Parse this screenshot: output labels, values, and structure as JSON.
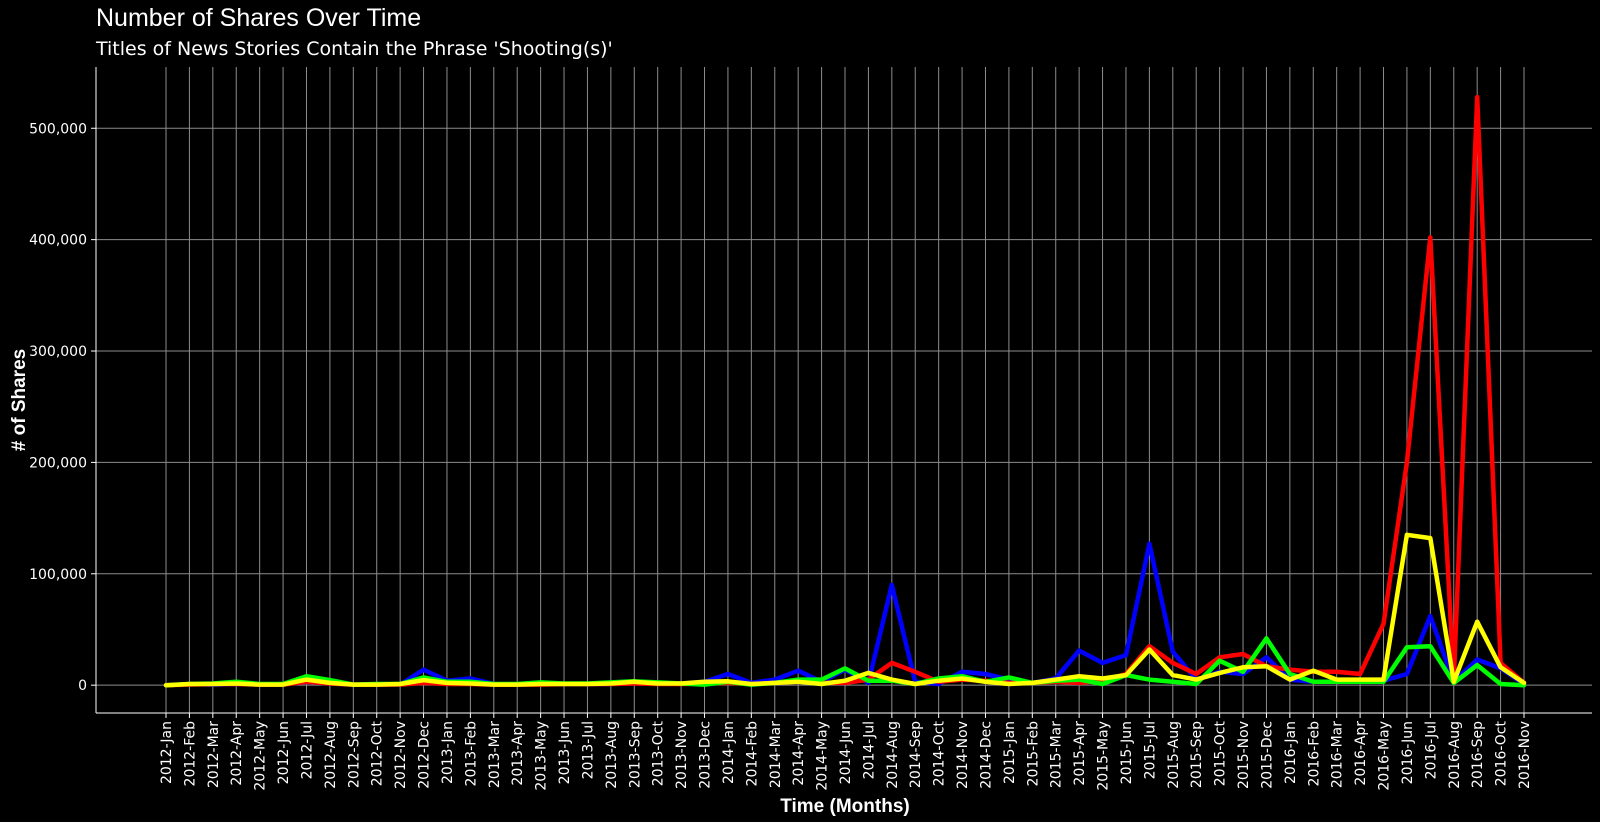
{
  "title": "Number of Shares Over Time",
  "subtitle": "Titles of News Stories Contain the Phrase 'Shooting(s)'",
  "colors": {
    "background": "#000000",
    "grid": "#8c8c8c",
    "text": "#ffffff"
  },
  "chart_data": {
    "type": "line",
    "xlabel": "Time (Months)",
    "ylabel": "# of Shares",
    "ylim": [
      -25000,
      555000
    ],
    "yticks": [
      0,
      100000,
      200000,
      300000,
      400000,
      500000
    ],
    "ytick_labels": [
      "0",
      "100,000",
      "200,000",
      "300,000",
      "400,000",
      "500,000"
    ],
    "grid": true,
    "legend": "none",
    "categories": [
      "2012-Jan",
      "2012-Feb",
      "2012-Mar",
      "2012-Apr",
      "2012-May",
      "2012-Jun",
      "2012-Jul",
      "2012-Aug",
      "2012-Sep",
      "2012-Oct",
      "2012-Nov",
      "2012-Dec",
      "2013-Jan",
      "2013-Feb",
      "2013-Mar",
      "2013-Apr",
      "2013-May",
      "2013-Jun",
      "2013-Jul",
      "2013-Aug",
      "2013-Sep",
      "2013-Oct",
      "2013-Nov",
      "2013-Dec",
      "2014-Jan",
      "2014-Feb",
      "2014-Mar",
      "2014-Apr",
      "2014-May",
      "2014-Jun",
      "2014-Jul",
      "2014-Aug",
      "2014-Sep",
      "2014-Oct",
      "2014-Nov",
      "2014-Dec",
      "2015-Jan",
      "2015-Feb",
      "2015-Mar",
      "2015-Apr",
      "2015-May",
      "2015-Jun",
      "2015-Jul",
      "2015-Aug",
      "2015-Sep",
      "2015-Oct",
      "2015-Nov",
      "2015-Dec",
      "2016-Jan",
      "2016-Feb",
      "2016-Mar",
      "2016-Apr",
      "2016-May",
      "2016-Jun",
      "2016-Jul",
      "2016-Aug",
      "2016-Sep",
      "2016-Oct",
      "2016-Nov"
    ],
    "series": [
      {
        "color": "#0000ff",
        "values": [
          0,
          1000,
          500,
          1000,
          500,
          500,
          3000,
          1500,
          500,
          500,
          500,
          14000,
          4000,
          6000,
          1000,
          500,
          1000,
          1000,
          1000,
          1000,
          2000,
          1500,
          1500,
          3000,
          10000,
          2000,
          5000,
          13000,
          3000,
          14000,
          2000,
          90000,
          3000,
          1000,
          12000,
          10000,
          5000,
          2000,
          6000,
          31000,
          20000,
          27000,
          127000,
          30000,
          5000,
          12000,
          10000,
          25000,
          5000,
          3000,
          3000,
          4000,
          4000,
          10000,
          62000,
          3000,
          23000,
          15000,
          1000
        ]
      },
      {
        "color": "#ff0000",
        "values": [
          0,
          500,
          1000,
          1000,
          500,
          500,
          3000,
          1500,
          500,
          500,
          500,
          2000,
          1000,
          1000,
          500,
          500,
          500,
          1000,
          1000,
          1000,
          1500,
          1000,
          1000,
          1500,
          2000,
          1000,
          2000,
          3000,
          2000,
          2000,
          5000,
          20000,
          12000,
          3000,
          5000,
          4000,
          2000,
          2000,
          3000,
          2000,
          4000,
          10000,
          35000,
          20000,
          10000,
          25000,
          28000,
          17000,
          14000,
          12000,
          12000,
          10000,
          55000,
          200000,
          402000,
          5000,
          528000,
          20000,
          2000
        ]
      },
      {
        "color": "#00ff00",
        "values": [
          0,
          1000,
          1500,
          3000,
          1000,
          1000,
          8000,
          4500,
          500,
          1000,
          1000,
          7000,
          3000,
          3000,
          1000,
          1000,
          2500,
          1500,
          1500,
          2500,
          3500,
          2500,
          1500,
          500,
          3000,
          500,
          2000,
          5000,
          5000,
          15000,
          4000,
          4000,
          1000,
          6000,
          8000,
          3000,
          7000,
          2000,
          4000,
          5000,
          1000,
          9000,
          5000,
          3000,
          1000,
          22000,
          12000,
          42000,
          10000,
          3000,
          3000,
          3000,
          3000,
          34000,
          35000,
          2000,
          18000,
          1000,
          0
        ]
      },
      {
        "color": "#ffff00",
        "values": [
          0,
          1000,
          1000,
          1500,
          500,
          500,
          5000,
          2000,
          500,
          500,
          1000,
          4500,
          2000,
          1500,
          500,
          500,
          1000,
          1000,
          1000,
          1500,
          3000,
          1500,
          1500,
          3000,
          3500,
          1000,
          2000,
          3000,
          1000,
          4000,
          11000,
          5000,
          1000,
          4000,
          6000,
          3000,
          1000,
          2000,
          5000,
          8000,
          6000,
          9000,
          32000,
          9000,
          5000,
          11000,
          16000,
          17000,
          5000,
          13000,
          5000,
          5000,
          5000,
          135000,
          132000,
          3000,
          57000,
          16000,
          2000
        ]
      }
    ]
  }
}
